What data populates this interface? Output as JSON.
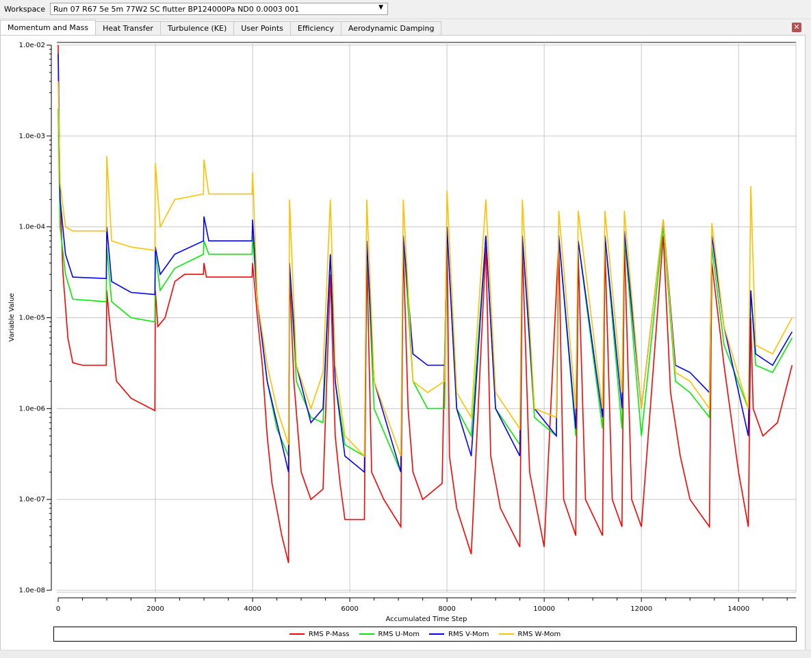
{
  "workspace": {
    "label": "Workspace",
    "value": "Run 07 R67 5e 5m 77W2 SC flutter BP124000Pa ND0 0.0003 001"
  },
  "tabs": [
    {
      "label": "Momentum and Mass",
      "active": true
    },
    {
      "label": "Heat Transfer"
    },
    {
      "label": "Turbulence (KE)"
    },
    {
      "label": "User Points"
    },
    {
      "label": "Efficiency"
    },
    {
      "label": "Aerodynamic Damping"
    }
  ],
  "icons": {
    "close": "close-icon",
    "dropdown": "chevron-down-icon"
  },
  "chart_data": {
    "type": "line",
    "xlabel": "Accumulated Time Step",
    "ylabel": "Variable Value",
    "xlim": [
      0,
      15180
    ],
    "ylim": [
      1e-08,
      0.01
    ],
    "yscale": "log",
    "grid": true,
    "legend": "bottom",
    "xticks": [
      "0",
      "2000",
      "4000",
      "6000",
      "8000",
      "10000",
      "12000",
      "14000"
    ],
    "yticks": [
      "1.0e-02",
      "1.0e-03",
      "1.0e-04",
      "1.0e-05",
      "1.0e-06",
      "1.0e-07",
      "1.0e-08"
    ],
    "series": [
      {
        "name": "RMS P-Mass",
        "color": "#ff0000",
        "points": [
          [
            0,
            0.01
          ],
          [
            30,
            0.0003
          ],
          [
            100,
            3e-05
          ],
          [
            200,
            6e-06
          ],
          [
            300,
            3.2e-06
          ],
          [
            500,
            3e-06
          ],
          [
            990,
            3e-06
          ],
          [
            1000,
            2e-05
          ],
          [
            1050,
            1e-05
          ],
          [
            1200,
            2e-06
          ],
          [
            1500,
            1.3e-06
          ],
          [
            1990,
            9.5e-07
          ],
          [
            2000,
            2e-05
          ],
          [
            2050,
            8e-06
          ],
          [
            2200,
            1e-05
          ],
          [
            2400,
            2.5e-05
          ],
          [
            2600,
            3e-05
          ],
          [
            2990,
            3e-05
          ],
          [
            3000,
            4e-05
          ],
          [
            3050,
            2.8e-05
          ],
          [
            3990,
            2.8e-05
          ],
          [
            4000,
            4e-05
          ],
          [
            4100,
            1e-05
          ],
          [
            4200,
            3e-06
          ],
          [
            4300,
            5e-07
          ],
          [
            4400,
            1.5e-07
          ],
          [
            4600,
            4e-08
          ],
          [
            4740,
            2e-08
          ],
          [
            4760,
            3e-05
          ],
          [
            4850,
            2e-06
          ],
          [
            5000,
            2e-07
          ],
          [
            5200,
            1e-07
          ],
          [
            5450,
            1.3e-07
          ],
          [
            5600,
            3e-05
          ],
          [
            5700,
            5e-07
          ],
          [
            5800,
            1.5e-07
          ],
          [
            5900,
            6e-08
          ],
          [
            6300,
            6e-08
          ],
          [
            6350,
            5e-05
          ],
          [
            6450,
            2e-07
          ],
          [
            6700,
            1e-07
          ],
          [
            7050,
            5e-08
          ],
          [
            7100,
            6e-05
          ],
          [
            7200,
            1e-06
          ],
          [
            7300,
            2e-07
          ],
          [
            7500,
            1e-07
          ],
          [
            7900,
            1.5e-07
          ],
          [
            8000,
            8e-05
          ],
          [
            8050,
            3e-07
          ],
          [
            8200,
            8e-08
          ],
          [
            8500,
            2.5e-08
          ],
          [
            8800,
            6e-05
          ],
          [
            8900,
            3e-07
          ],
          [
            9100,
            8e-08
          ],
          [
            9500,
            3e-08
          ],
          [
            9550,
            6e-05
          ],
          [
            9700,
            2e-07
          ],
          [
            10000,
            3e-08
          ],
          [
            10300,
            7e-05
          ],
          [
            10400,
            1e-07
          ],
          [
            10650,
            4e-08
          ],
          [
            10700,
            5e-05
          ],
          [
            10850,
            1e-07
          ],
          [
            11200,
            4e-08
          ],
          [
            11250,
            6e-05
          ],
          [
            11400,
            1e-07
          ],
          [
            11600,
            5e-08
          ],
          [
            11650,
            7e-05
          ],
          [
            11800,
            1e-07
          ],
          [
            12000,
            5e-08
          ],
          [
            12450,
            8e-05
          ],
          [
            12600,
            1.5e-06
          ],
          [
            12800,
            3e-07
          ],
          [
            13000,
            1e-07
          ],
          [
            13400,
            5e-08
          ],
          [
            13450,
            4e-05
          ],
          [
            13700,
            3e-06
          ],
          [
            14000,
            2e-07
          ],
          [
            14200,
            5e-08
          ],
          [
            14250,
            1e-05
          ],
          [
            14300,
            1e-06
          ],
          [
            14500,
            5e-07
          ],
          [
            14800,
            7e-07
          ],
          [
            15100,
            3e-06
          ]
        ]
      },
      {
        "name": "RMS U-Mom",
        "color": "#00ee00",
        "points": [
          [
            0,
            0.002
          ],
          [
            40,
            0.0001
          ],
          [
            150,
            3e-05
          ],
          [
            300,
            1.6e-05
          ],
          [
            990,
            1.5e-05
          ],
          [
            1000,
            6e-05
          ],
          [
            1100,
            1.5e-05
          ],
          [
            1500,
            1e-05
          ],
          [
            1990,
            9e-06
          ],
          [
            2000,
            5e-05
          ],
          [
            2100,
            2e-05
          ],
          [
            2400,
            3.5e-05
          ],
          [
            2990,
            5e-05
          ],
          [
            3000,
            7e-05
          ],
          [
            3100,
            5e-05
          ],
          [
            3990,
            5e-05
          ],
          [
            4000,
            8e-05
          ],
          [
            4100,
            1.5e-05
          ],
          [
            4300,
            2e-06
          ],
          [
            4500,
            6e-07
          ],
          [
            4740,
            3e-07
          ],
          [
            4760,
            4e-05
          ],
          [
            4900,
            2e-06
          ],
          [
            5200,
            8e-07
          ],
          [
            5450,
            7e-07
          ],
          [
            5600,
            5e-05
          ],
          [
            5700,
            2e-06
          ],
          [
            5900,
            4e-07
          ],
          [
            6300,
            3e-07
          ],
          [
            6350,
            7e-05
          ],
          [
            6500,
            1e-06
          ],
          [
            7050,
            2e-07
          ],
          [
            7100,
            8e-05
          ],
          [
            7300,
            2e-06
          ],
          [
            7600,
            1e-06
          ],
          [
            7950,
            1e-06
          ],
          [
            8000,
            0.0001
          ],
          [
            8200,
            1e-06
          ],
          [
            8500,
            5e-07
          ],
          [
            8800,
            8e-05
          ],
          [
            9000,
            1e-06
          ],
          [
            9500,
            4e-07
          ],
          [
            9550,
            8e-05
          ],
          [
            9800,
            8e-07
          ],
          [
            10250,
            5e-07
          ],
          [
            10300,
            8e-05
          ],
          [
            10650,
            5e-07
          ],
          [
            10700,
            7e-05
          ],
          [
            11200,
            6e-07
          ],
          [
            11250,
            8e-05
          ],
          [
            11600,
            6e-07
          ],
          [
            11650,
            8e-05
          ],
          [
            12000,
            5e-07
          ],
          [
            12450,
            0.0001
          ],
          [
            12700,
            2e-06
          ],
          [
            13000,
            1.5e-06
          ],
          [
            13400,
            8e-07
          ],
          [
            13450,
            6e-05
          ],
          [
            13700,
            5e-06
          ],
          [
            14200,
            1e-06
          ],
          [
            14250,
            2e-05
          ],
          [
            14350,
            3e-06
          ],
          [
            14700,
            2.5e-06
          ],
          [
            15100,
            6e-06
          ]
        ]
      },
      {
        "name": "RMS V-Mom",
        "color": "#0000ff",
        "points": [
          [
            0,
            0.008
          ],
          [
            40,
            0.0002
          ],
          [
            150,
            5e-05
          ],
          [
            300,
            2.8e-05
          ],
          [
            990,
            2.7e-05
          ],
          [
            1000,
            0.0001
          ],
          [
            1100,
            2.5e-05
          ],
          [
            1500,
            1.9e-05
          ],
          [
            1990,
            1.8e-05
          ],
          [
            2000,
            6e-05
          ],
          [
            2100,
            3e-05
          ],
          [
            2400,
            5e-05
          ],
          [
            2990,
            7e-05
          ],
          [
            3000,
            0.00013
          ],
          [
            3100,
            7e-05
          ],
          [
            3990,
            7e-05
          ],
          [
            4000,
            0.00012
          ],
          [
            4100,
            1.5e-05
          ],
          [
            4300,
            2e-06
          ],
          [
            4500,
            7e-07
          ],
          [
            4740,
            2e-07
          ],
          [
            4760,
            4e-05
          ],
          [
            4900,
            3e-06
          ],
          [
            5200,
            7e-07
          ],
          [
            5450,
            1e-06
          ],
          [
            5600,
            5e-05
          ],
          [
            5700,
            2e-06
          ],
          [
            5900,
            3e-07
          ],
          [
            6300,
            2e-07
          ],
          [
            6350,
            7e-05
          ],
          [
            6500,
            2e-06
          ],
          [
            7050,
            2e-07
          ],
          [
            7100,
            8e-05
          ],
          [
            7300,
            4e-06
          ],
          [
            7600,
            3e-06
          ],
          [
            7950,
            3e-06
          ],
          [
            8000,
            0.0001
          ],
          [
            8200,
            1e-06
          ],
          [
            8500,
            3e-07
          ],
          [
            8800,
            8e-05
          ],
          [
            9000,
            1e-06
          ],
          [
            9500,
            3e-07
          ],
          [
            9550,
            8e-05
          ],
          [
            9800,
            1e-06
          ],
          [
            10250,
            5e-07
          ],
          [
            10300,
            8e-05
          ],
          [
            10650,
            6e-07
          ],
          [
            10700,
            7e-05
          ],
          [
            11200,
            8e-07
          ],
          [
            11250,
            8e-05
          ],
          [
            11600,
            1e-06
          ],
          [
            11650,
            9e-05
          ],
          [
            12000,
            1e-06
          ],
          [
            12450,
            0.00012
          ],
          [
            12700,
            3e-06
          ],
          [
            13000,
            2.5e-06
          ],
          [
            13400,
            1.5e-06
          ],
          [
            13450,
            8e-05
          ],
          [
            13700,
            8e-06
          ],
          [
            14200,
            5e-07
          ],
          [
            14250,
            2e-05
          ],
          [
            14350,
            4e-06
          ],
          [
            14700,
            3e-06
          ],
          [
            15100,
            7e-06
          ]
        ]
      },
      {
        "name": "RMS W-Mom",
        "color": "#ffc000",
        "points": [
          [
            0,
            0.004
          ],
          [
            40,
            0.0003
          ],
          [
            150,
            0.0001
          ],
          [
            300,
            9e-05
          ],
          [
            990,
            9e-05
          ],
          [
            1000,
            0.0006
          ],
          [
            1100,
            7e-05
          ],
          [
            1500,
            6e-05
          ],
          [
            1990,
            5.5e-05
          ],
          [
            2000,
            0.0005
          ],
          [
            2100,
            0.0001
          ],
          [
            2400,
            0.0002
          ],
          [
            2990,
            0.00023
          ],
          [
            3000,
            0.00055
          ],
          [
            3100,
            0.00023
          ],
          [
            3990,
            0.00023
          ],
          [
            4000,
            0.0004
          ],
          [
            4100,
            1.5e-05
          ],
          [
            4300,
            3e-06
          ],
          [
            4500,
            1e-06
          ],
          [
            4740,
            4e-07
          ],
          [
            4760,
            0.0002
          ],
          [
            4900,
            3e-06
          ],
          [
            5200,
            1e-06
          ],
          [
            5450,
            2.5e-06
          ],
          [
            5600,
            0.0002
          ],
          [
            5700,
            3e-06
          ],
          [
            5900,
            5e-07
          ],
          [
            6300,
            3e-07
          ],
          [
            6350,
            0.0002
          ],
          [
            6500,
            2e-06
          ],
          [
            7050,
            3e-07
          ],
          [
            7100,
            0.0002
          ],
          [
            7300,
            2e-06
          ],
          [
            7600,
            1.5e-06
          ],
          [
            7950,
            2e-06
          ],
          [
            8000,
            0.00025
          ],
          [
            8200,
            1.5e-06
          ],
          [
            8500,
            8e-07
          ],
          [
            8800,
            0.0002
          ],
          [
            9000,
            1.5e-06
          ],
          [
            9500,
            6e-07
          ],
          [
            9550,
            0.0002
          ],
          [
            9800,
            1e-06
          ],
          [
            10250,
            8e-07
          ],
          [
            10300,
            0.00015
          ],
          [
            10650,
            1e-06
          ],
          [
            10700,
            0.00015
          ],
          [
            11200,
            1e-06
          ],
          [
            11250,
            0.00015
          ],
          [
            11600,
            1.5e-06
          ],
          [
            11650,
            0.00015
          ],
          [
            12000,
            1e-06
          ],
          [
            12450,
            0.00012
          ],
          [
            12700,
            2.5e-06
          ],
          [
            13000,
            2e-06
          ],
          [
            13400,
            1e-06
          ],
          [
            13450,
            0.00011
          ],
          [
            13700,
            8e-06
          ],
          [
            14200,
            1e-06
          ],
          [
            14250,
            0.00028
          ],
          [
            14350,
            5e-06
          ],
          [
            14700,
            4e-06
          ],
          [
            15100,
            1e-05
          ]
        ]
      }
    ]
  }
}
